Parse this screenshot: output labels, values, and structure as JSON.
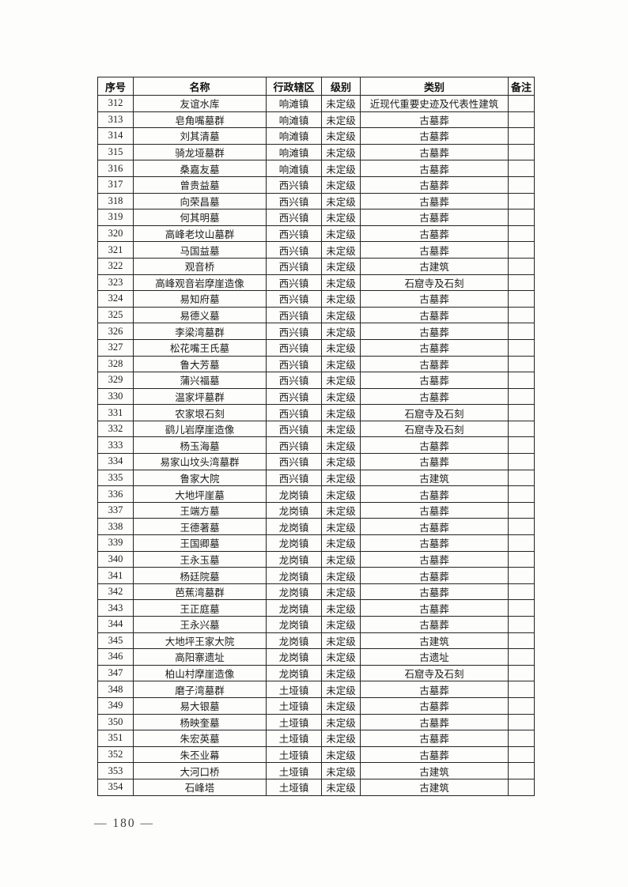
{
  "page": {
    "footer_page_number": "— 180 —"
  },
  "table": {
    "headers": [
      "序号",
      "名称",
      "行政辖区",
      "级别",
      "类别",
      "备注"
    ],
    "rows": [
      [
        "312",
        "友谊水库",
        "响滩镇",
        "未定级",
        "近现代重要史迹及代表性建筑",
        ""
      ],
      [
        "313",
        "皂角嘴墓群",
        "响滩镇",
        "未定级",
        "古墓葬",
        ""
      ],
      [
        "314",
        "刘其清墓",
        "响滩镇",
        "未定级",
        "古墓葬",
        ""
      ],
      [
        "315",
        "骑龙垭墓群",
        "响滩镇",
        "未定级",
        "古墓葬",
        ""
      ],
      [
        "316",
        "桑嘉友墓",
        "响滩镇",
        "未定级",
        "古墓葬",
        ""
      ],
      [
        "317",
        "曾贵益墓",
        "西兴镇",
        "未定级",
        "古墓葬",
        ""
      ],
      [
        "318",
        "向荣昌墓",
        "西兴镇",
        "未定级",
        "古墓葬",
        ""
      ],
      [
        "319",
        "何其明墓",
        "西兴镇",
        "未定级",
        "古墓葬",
        ""
      ],
      [
        "320",
        "高峰老坟山墓群",
        "西兴镇",
        "未定级",
        "古墓葬",
        ""
      ],
      [
        "321",
        "马国益墓",
        "西兴镇",
        "未定级",
        "古墓葬",
        ""
      ],
      [
        "322",
        "观音桥",
        "西兴镇",
        "未定级",
        "古建筑",
        ""
      ],
      [
        "323",
        "高峰观音岩摩崖造像",
        "西兴镇",
        "未定级",
        "石窟寺及石刻",
        ""
      ],
      [
        "324",
        "易知府墓",
        "西兴镇",
        "未定级",
        "古墓葬",
        ""
      ],
      [
        "325",
        "易德义墓",
        "西兴镇",
        "未定级",
        "古墓葬",
        ""
      ],
      [
        "326",
        "李梁湾墓群",
        "西兴镇",
        "未定级",
        "古墓葬",
        ""
      ],
      [
        "327",
        "松花嘴王氏墓",
        "西兴镇",
        "未定级",
        "古墓葬",
        ""
      ],
      [
        "328",
        "鲁大芳墓",
        "西兴镇",
        "未定级",
        "古墓葬",
        ""
      ],
      [
        "329",
        "蒲兴福墓",
        "西兴镇",
        "未定级",
        "古墓葬",
        ""
      ],
      [
        "330",
        "温家坪墓群",
        "西兴镇",
        "未定级",
        "古墓葬",
        ""
      ],
      [
        "331",
        "农家垠石刻",
        "西兴镇",
        "未定级",
        "石窟寺及石刻",
        ""
      ],
      [
        "332",
        "鹞儿岩摩崖造像",
        "西兴镇",
        "未定级",
        "石窟寺及石刻",
        ""
      ],
      [
        "333",
        "杨玉海墓",
        "西兴镇",
        "未定级",
        "古墓葬",
        ""
      ],
      [
        "334",
        "易家山坟头湾墓群",
        "西兴镇",
        "未定级",
        "古墓葬",
        ""
      ],
      [
        "335",
        "鲁家大院",
        "西兴镇",
        "未定级",
        "古建筑",
        ""
      ],
      [
        "336",
        "大地坪崖墓",
        "龙岗镇",
        "未定级",
        "古墓葬",
        ""
      ],
      [
        "337",
        "王端方墓",
        "龙岗镇",
        "未定级",
        "古墓葬",
        ""
      ],
      [
        "338",
        "王德著墓",
        "龙岗镇",
        "未定级",
        "古墓葬",
        ""
      ],
      [
        "339",
        "王国卿墓",
        "龙岗镇",
        "未定级",
        "古墓葬",
        ""
      ],
      [
        "340",
        "王永玉墓",
        "龙岗镇",
        "未定级",
        "古墓葬",
        ""
      ],
      [
        "341",
        "杨廷院墓",
        "龙岗镇",
        "未定级",
        "古墓葬",
        ""
      ],
      [
        "342",
        "芭蕉湾墓群",
        "龙岗镇",
        "未定级",
        "古墓葬",
        ""
      ],
      [
        "343",
        "王正庭墓",
        "龙岗镇",
        "未定级",
        "古墓葬",
        ""
      ],
      [
        "344",
        "王永兴墓",
        "龙岗镇",
        "未定级",
        "古墓葬",
        ""
      ],
      [
        "345",
        "大地坪王家大院",
        "龙岗镇",
        "未定级",
        "古建筑",
        ""
      ],
      [
        "346",
        "高阳寨遗址",
        "龙岗镇",
        "未定级",
        "古遗址",
        ""
      ],
      [
        "347",
        "柏山村摩崖造像",
        "龙岗镇",
        "未定级",
        "石窟寺及石刻",
        ""
      ],
      [
        "348",
        "磨子湾墓群",
        "土垭镇",
        "未定级",
        "古墓葬",
        ""
      ],
      [
        "349",
        "易大银墓",
        "土垭镇",
        "未定级",
        "古墓葬",
        ""
      ],
      [
        "350",
        "杨映奎墓",
        "土垭镇",
        "未定级",
        "古墓葬",
        ""
      ],
      [
        "351",
        "朱宏英墓",
        "土垭镇",
        "未定级",
        "古墓葬",
        ""
      ],
      [
        "352",
        "朱丕业幕",
        "土垭镇",
        "未定级",
        "古墓葬",
        ""
      ],
      [
        "353",
        "大河口桥",
        "土垭镇",
        "未定级",
        "古建筑",
        ""
      ],
      [
        "354",
        "石峰塔",
        "土垭镇",
        "未定级",
        "古建筑",
        ""
      ]
    ]
  }
}
